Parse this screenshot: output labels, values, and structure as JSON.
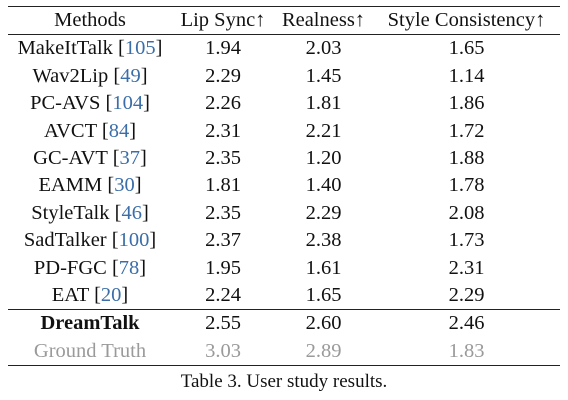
{
  "table": {
    "headers": [
      "Methods",
      "Lip Sync↑",
      "Realness↑",
      "Style Consistency↑"
    ],
    "rows": [
      {
        "method": "MakeItTalk",
        "cite": "105",
        "values": [
          "1.94",
          "2.03",
          "1.65"
        ]
      },
      {
        "method": "Wav2Lip",
        "cite": "49",
        "values": [
          "2.29",
          "1.45",
          "1.14"
        ]
      },
      {
        "method": "PC-AVS",
        "cite": "104",
        "values": [
          "2.26",
          "1.81",
          "1.86"
        ]
      },
      {
        "method": "AVCT",
        "cite": "84",
        "values": [
          "2.31",
          "2.21",
          "1.72"
        ]
      },
      {
        "method": "GC-AVT",
        "cite": "37",
        "values": [
          "2.35",
          "1.20",
          "1.88"
        ]
      },
      {
        "method": "EAMM",
        "cite": "30",
        "values": [
          "1.81",
          "1.40",
          "1.78"
        ]
      },
      {
        "method": "StyleTalk",
        "cite": "46",
        "values": [
          "2.35",
          "2.29",
          "2.08"
        ]
      },
      {
        "method": "SadTalker",
        "cite": "100",
        "values": [
          "2.37",
          "2.38",
          "1.73"
        ]
      },
      {
        "method": "PD-FGC",
        "cite": "78",
        "values": [
          "1.95",
          "1.61",
          "2.31"
        ]
      },
      {
        "method": "EAT",
        "cite": "20",
        "values": [
          "2.24",
          "1.65",
          "2.29"
        ]
      }
    ],
    "ours": {
      "method": "DreamTalk",
      "values": [
        "2.55",
        "2.60",
        "2.46"
      ]
    },
    "ground_truth": {
      "method": "Ground Truth",
      "values": [
        "3.03",
        "2.89",
        "1.83"
      ]
    }
  },
  "caption": "Table 3. User study results.",
  "colors": {
    "citation": "#3b6ea8",
    "ground_truth_text": "#9a9a9a",
    "text": "#111111"
  }
}
